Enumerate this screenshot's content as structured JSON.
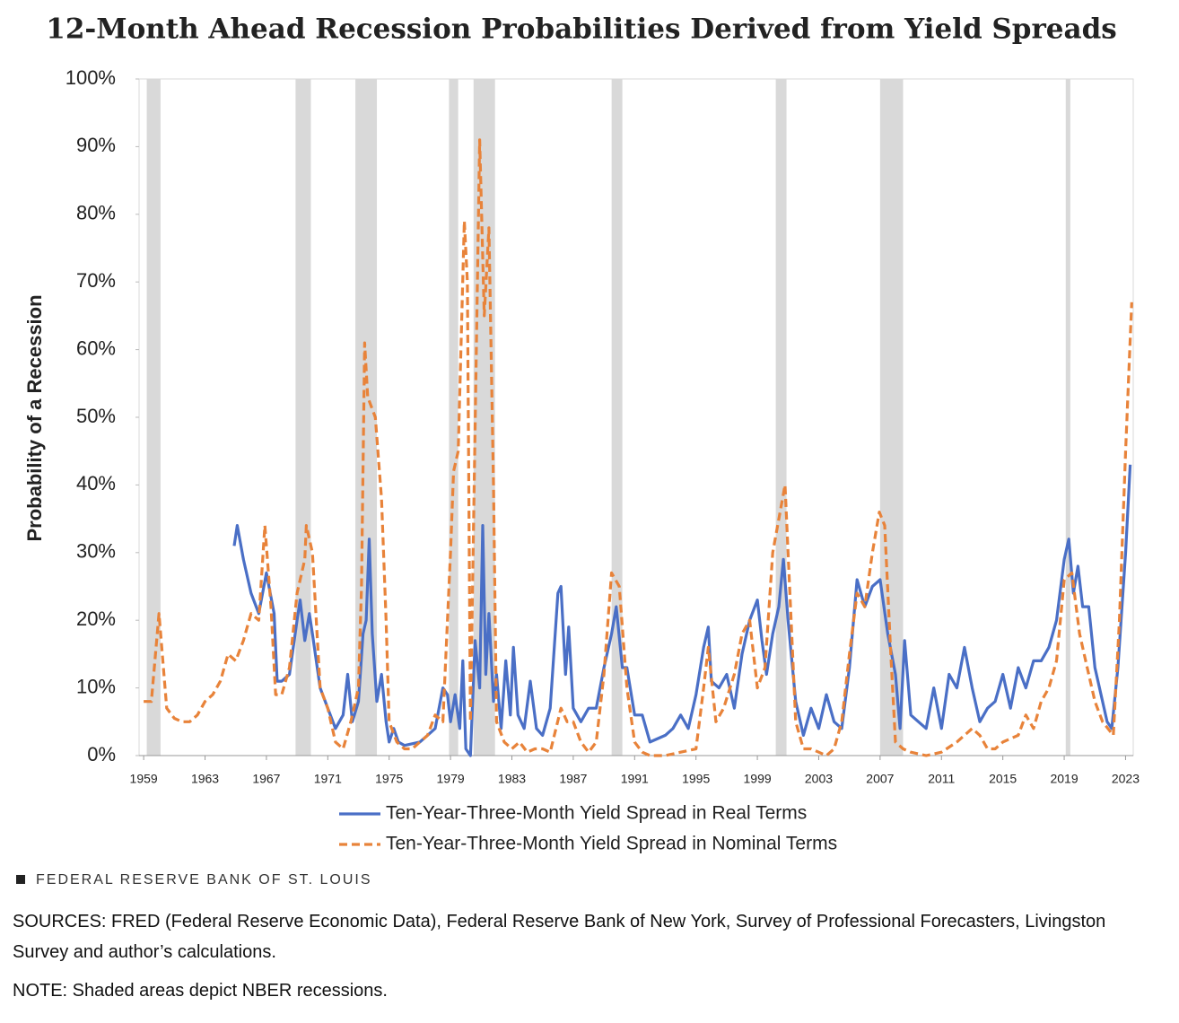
{
  "chart_data": {
    "type": "line",
    "title": "12-Month Ahead Recession Probabilities Derived from Yield Spreads",
    "y_label": "Probability  of a Recession",
    "xlim": [
      1958.7,
      2023.5
    ],
    "xticks": [
      1959,
      1963,
      1967,
      1971,
      1975,
      1979,
      1983,
      1987,
      1991,
      1995,
      1999,
      2003,
      2007,
      2011,
      2015,
      2019,
      2023
    ],
    "ylim": [
      0,
      100
    ],
    "yticks": [
      {
        "value": 0,
        "label": "0%"
      },
      {
        "value": 10,
        "label": "10%"
      },
      {
        "value": 20,
        "label": "20%"
      },
      {
        "value": 30,
        "label": "30%"
      },
      {
        "value": 40,
        "label": "40%"
      },
      {
        "value": 50,
        "label": "50%"
      },
      {
        "value": 60,
        "label": "60%"
      },
      {
        "value": 70,
        "label": "70%"
      },
      {
        "value": 80,
        "label": "80%"
      },
      {
        "value": 90,
        "label": "90%"
      },
      {
        "value": 100,
        "label": "100%"
      }
    ],
    "recession_color": "#d9d9d9",
    "recessions": [
      [
        1959.2,
        1960.1
      ],
      [
        1968.9,
        1969.9
      ],
      [
        1972.8,
        1974.2
      ],
      [
        1978.9,
        1979.5
      ],
      [
        1980.5,
        1981.9
      ],
      [
        1989.5,
        1990.2
      ],
      [
        2000.2,
        2000.9
      ],
      [
        2007.0,
        2008.5
      ],
      [
        2019.1,
        2019.4
      ]
    ],
    "series": [
      {
        "name": "Ten-Year-Three-Month Yield Spread in Real Terms",
        "color": "#4a6fc6",
        "dash": false,
        "x": [
          1964.9,
          1965.1,
          1965.5,
          1966,
          1966.5,
          1967,
          1967.5,
          1967.7,
          1968,
          1968.5,
          1969,
          1969.2,
          1969.5,
          1969.8,
          1970,
          1970.5,
          1971,
          1971.5,
          1972,
          1972.3,
          1972.6,
          1973,
          1973.3,
          1973.5,
          1973.7,
          1973.9,
          1974.2,
          1974.5,
          1974.8,
          1975,
          1975.3,
          1975.6,
          1976,
          1977,
          1977.5,
          1978,
          1978.5,
          1978.8,
          1979,
          1979.3,
          1979.6,
          1979.8,
          1980,
          1980.3,
          1980.6,
          1980.9,
          1981.1,
          1981.3,
          1981.5,
          1981.8,
          1982,
          1982.3,
          1982.6,
          1982.9,
          1983.1,
          1983.4,
          1983.8,
          1984.2,
          1984.6,
          1985,
          1985.5,
          1986,
          1986.2,
          1986.5,
          1986.7,
          1987,
          1987.5,
          1988,
          1988.5,
          1989,
          1989.5,
          1989.8,
          1990.2,
          1990.5,
          1991,
          1991.5,
          1992,
          1993,
          1993.5,
          1994,
          1994.5,
          1995,
          1995.5,
          1995.8,
          1996,
          1996.5,
          1997,
          1997.5,
          1998,
          1998.5,
          1999,
          1999.3,
          1999.6,
          2000,
          2000.4,
          2000.7,
          2001,
          2001.5,
          2002,
          2002.5,
          2003,
          2003.5,
          2004,
          2004.5,
          2005,
          2005.5,
          2006,
          2006.5,
          2007,
          2007.5,
          2008,
          2008.3,
          2008.6,
          2009,
          2009.5,
          2010,
          2010.5,
          2011,
          2011.5,
          2012,
          2012.5,
          2013,
          2013.5,
          2014,
          2014.5,
          2015,
          2015.5,
          2016,
          2016.5,
          2017,
          2017.5,
          2018,
          2018.5,
          2019,
          2019.3,
          2019.6,
          2019.9,
          2020.2,
          2020.6,
          2021,
          2021.4,
          2021.8,
          2022.1,
          2022.5,
          2023,
          2023.3
        ],
        "values": [
          31,
          34,
          29,
          24,
          21,
          27,
          21,
          11,
          11,
          12,
          20,
          23,
          17,
          21,
          18,
          10,
          7,
          4,
          6,
          12,
          5,
          8,
          18,
          20,
          32,
          18,
          8,
          12,
          5,
          2,
          4,
          2,
          1.5,
          2,
          3,
          4,
          10,
          9,
          5,
          9,
          4,
          14,
          1,
          0,
          17,
          10,
          34,
          12,
          21,
          8,
          12,
          4,
          14,
          6,
          16,
          6,
          4,
          11,
          4,
          3,
          7,
          24,
          25,
          12,
          19,
          7,
          5,
          7,
          7,
          13,
          18,
          22,
          13,
          13,
          6,
          6,
          2,
          3,
          4,
          6,
          4,
          9,
          16,
          19,
          11,
          10,
          12,
          7,
          15,
          20,
          23,
          17,
          12,
          18,
          22,
          29,
          20,
          8,
          3,
          7,
          4,
          9,
          5,
          4,
          13,
          26,
          22,
          25,
          26,
          18,
          12,
          4,
          17,
          6,
          5,
          4,
          10,
          4,
          12,
          10,
          16,
          10,
          5,
          7,
          8,
          12,
          7,
          13,
          10,
          14,
          14,
          16,
          20,
          29,
          32,
          24,
          28,
          22,
          22,
          13,
          9,
          5,
          4,
          13,
          30,
          43
        ]
      },
      {
        "name": "Ten-Year-Three-Month Yield Spread in Nominal Terms",
        "color": "#e8833a",
        "dash": true,
        "x": [
          1959,
          1959.5,
          1960,
          1960.5,
          1961,
          1961.5,
          1962,
          1962.5,
          1963,
          1963.5,
          1964,
          1964.5,
          1965,
          1965.5,
          1966,
          1966.5,
          1966.9,
          1967.3,
          1967.6,
          1968,
          1968.5,
          1969,
          1969.5,
          1969.6,
          1970,
          1970.5,
          1971,
          1971.5,
          1972,
          1972.5,
          1973,
          1973.2,
          1973.4,
          1973.6,
          1974.1,
          1974.5,
          1974.8,
          1975,
          1975.5,
          1976,
          1976.5,
          1977,
          1977.5,
          1978,
          1978.5,
          1979,
          1979.2,
          1979.5,
          1979.9,
          1980.1,
          1980.3,
          1980.9,
          1981.2,
          1981.5,
          1981.8,
          1982,
          1982.5,
          1983,
          1983.5,
          1984,
          1984.5,
          1985,
          1985.5,
          1986.2,
          1986.6,
          1987,
          1987.5,
          1988,
          1988.5,
          1989,
          1989.5,
          1990,
          1990.5,
          1991,
          1991.5,
          1992,
          1993,
          1994,
          1995,
          1995.5,
          1995.8,
          1996.3,
          1996.8,
          1997.5,
          1998,
          1998.5,
          1999,
          1999.5,
          2000,
          2000.8,
          2001.1,
          2001.5,
          2002,
          2002.5,
          2003,
          2003.5,
          2004,
          2004.5,
          2005,
          2005.5,
          2006,
          2006.5,
          2006.95,
          2007.3,
          2007.7,
          2008,
          2008.5,
          2009,
          2010,
          2011,
          2012,
          2013,
          2013.5,
          2014,
          2014.5,
          2015,
          2016,
          2016.5,
          2017,
          2017.5,
          2018,
          2018.5,
          2019,
          2019.5,
          2020,
          2020.5,
          2021,
          2021.5,
          2022.2,
          2022.6,
          2023,
          2023.4
        ],
        "values": [
          8,
          8,
          21,
          7,
          5.5,
          5,
          5,
          6,
          8,
          9,
          11,
          15,
          14,
          17,
          21,
          20,
          34,
          22,
          9,
          9,
          13,
          24,
          29,
          34,
          30,
          10,
          7,
          2,
          1,
          5,
          10,
          25,
          61,
          53,
          50,
          38,
          20,
          5,
          2,
          1,
          1,
          2,
          3,
          6,
          5,
          30,
          42,
          45,
          79,
          70,
          5,
          91,
          65,
          78,
          40,
          5,
          2,
          1,
          2,
          0.5,
          1,
          1,
          0.5,
          7,
          5,
          5,
          2,
          0.5,
          2,
          12,
          27,
          25,
          10,
          2,
          0.5,
          0,
          0,
          0.5,
          1,
          10,
          16,
          5,
          7,
          12,
          18,
          20,
          10,
          13,
          30,
          40,
          25,
          5,
          1,
          1,
          0.5,
          0,
          1,
          5,
          15,
          24,
          22,
          30,
          36,
          34,
          15,
          2,
          1,
          0.5,
          0,
          0.5,
          2,
          4,
          3,
          1,
          1,
          2,
          3,
          6,
          4,
          8,
          10,
          14,
          26,
          27,
          18,
          13,
          8,
          5,
          3,
          20,
          45,
          67
        ]
      }
    ]
  },
  "branding": "FEDERAL RESERVE BANK OF ST. LOUIS",
  "sources": "SOURCES: FRED (Federal Reserve Economic Data), Federal Reserve Bank of New York, Survey of Professional Forecasters, Livingston Survey and author’s calculations.",
  "note": "NOTE: Shaded areas depict NBER recessions."
}
